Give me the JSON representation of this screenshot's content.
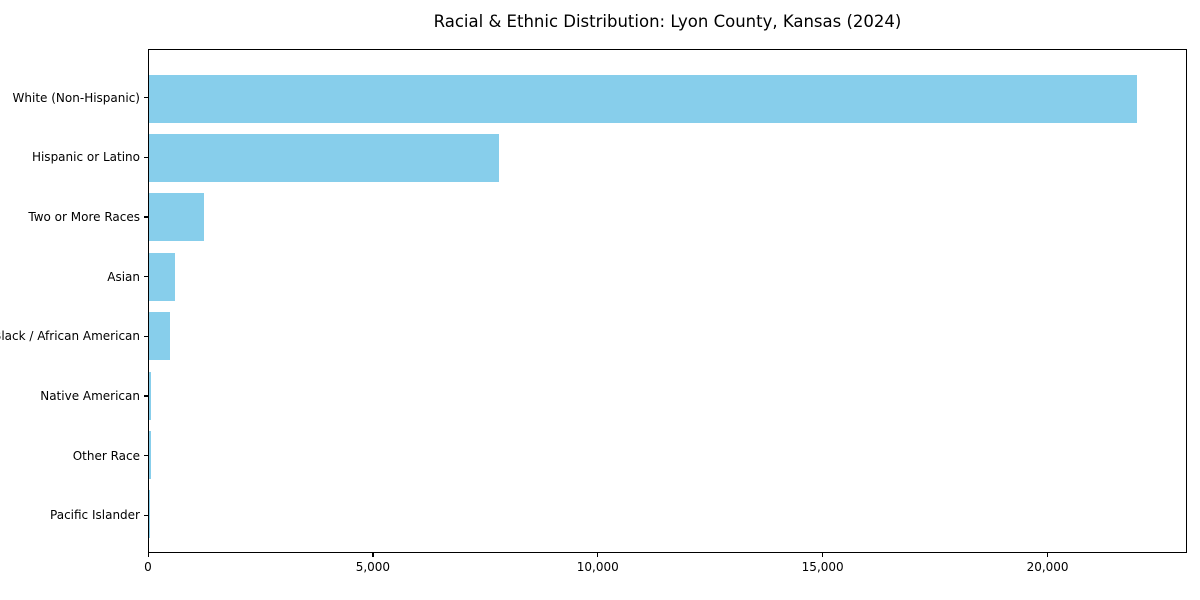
{
  "page": {
    "background_color": "#ffffff",
    "text_color": "#000000"
  },
  "chart_data": {
    "type": "bar",
    "orientation": "horizontal",
    "title": "Racial & Ethnic Distribution: Lyon County, Kansas (2024)",
    "xlabel": "",
    "ylabel": "",
    "categories": [
      "White (Non-Hispanic)",
      "Hispanic or Latino",
      "Two or More Races",
      "Asian",
      "Black / African American",
      "Native American",
      "Other Race",
      "Pacific Islander"
    ],
    "values": [
      22000,
      7800,
      1230,
      580,
      460,
      50,
      55,
      10
    ],
    "xlim": [
      0,
      23100
    ],
    "xticks": [
      {
        "value": 0,
        "label": "0"
      },
      {
        "value": 5000,
        "label": "5,000"
      },
      {
        "value": 10000,
        "label": "10,000"
      },
      {
        "value": 15000,
        "label": "15,000"
      },
      {
        "value": 20000,
        "label": "20,000"
      }
    ],
    "bar_color": "#87CEEB",
    "frame_color": "#000000",
    "grid": false,
    "legend": null
  }
}
